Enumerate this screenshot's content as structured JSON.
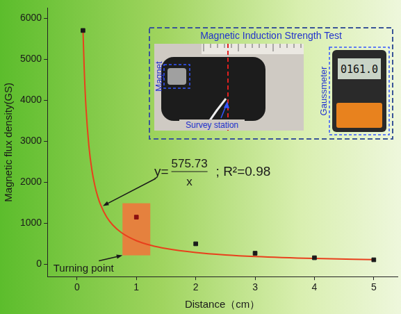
{
  "chart_data": {
    "type": "scatter",
    "x_label": "Distance（cm）",
    "y_label": "Magnetic flux density(GS)",
    "xlim": [
      -0.5,
      5.4
    ],
    "xticks": [
      0,
      1,
      2,
      3,
      4,
      5
    ],
    "ylim": [
      -300,
      6250
    ],
    "yticks": [
      0,
      1000,
      2000,
      3000,
      4000,
      5000,
      6000
    ],
    "grid": false,
    "series": [
      {
        "type": "scatter",
        "marker": "square",
        "x": [
          0.1,
          1,
          2,
          3,
          4,
          5
        ],
        "values": [
          5700,
          1150,
          500,
          270,
          160,
          110
        ],
        "colors": [
          "#1a1a1a",
          "#8b1010",
          "#1a1a1a",
          "#1a1a1a",
          "#1a1a1a",
          "#1a1a1a"
        ]
      },
      {
        "type": "line",
        "marker": "none",
        "line_style": "solid",
        "color": "#e8401c",
        "x": [
          0.1,
          0.12,
          0.15,
          0.2,
          0.25,
          0.3,
          0.35,
          0.4,
          0.5,
          0.6,
          0.75,
          1,
          1.25,
          1.5,
          2,
          2.5,
          3,
          4,
          5
        ],
        "values": [
          5750,
          4800,
          3840,
          2880,
          2300,
          1920,
          1645,
          1440,
          1150,
          960,
          770,
          576,
          460,
          384,
          288,
          230,
          192,
          144,
          115
        ]
      }
    ],
    "annotations": [
      {
        "text": "Turning point",
        "x": 1,
        "y": 1150
      }
    ],
    "equation": {
      "lhs": "y=",
      "numerator": "575.73",
      "denominator": "x",
      "suffix": "; R²=0.98"
    }
  },
  "inset": {
    "title": "Magnetic Induction Strength Test",
    "magnet": "Magnet",
    "station": "Survey station",
    "meter": "Gaussmeter",
    "display": "0161.0"
  }
}
